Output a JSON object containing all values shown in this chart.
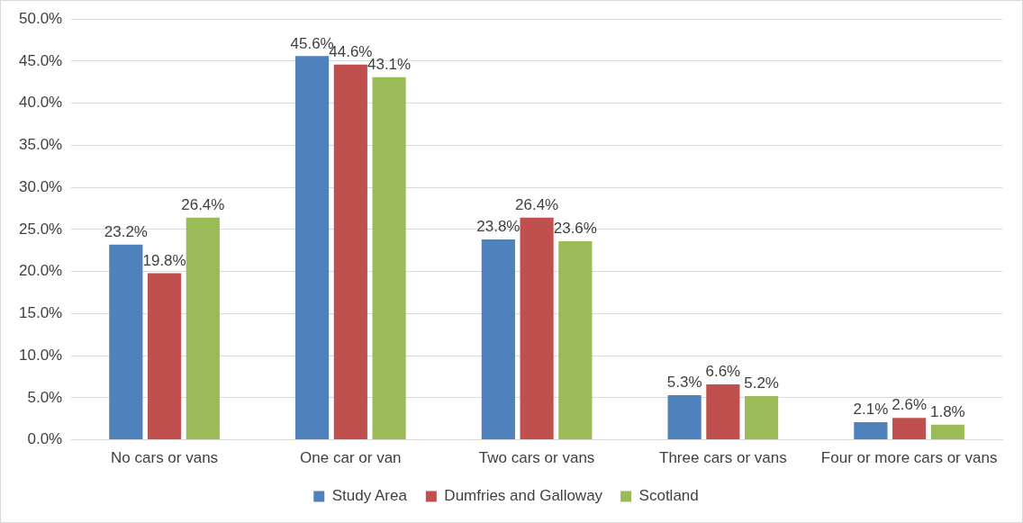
{
  "chart_data": {
    "type": "bar",
    "categories": [
      "No cars or vans",
      "One car or van",
      "Two cars or vans",
      "Three cars or vans",
      "Four or more cars or vans"
    ],
    "series": [
      {
        "name": "Study Area",
        "color": "#4f81bd",
        "values": [
          23.2,
          45.6,
          23.8,
          5.3,
          2.1
        ],
        "value_labels": [
          "23.2%",
          "45.6%",
          "23.8%",
          "5.3%",
          "2.1%"
        ]
      },
      {
        "name": "Dumfries and Galloway",
        "color": "#c0504d",
        "values": [
          19.8,
          44.6,
          26.4,
          6.6,
          2.6
        ],
        "value_labels": [
          "19.8%",
          "44.6%",
          "26.4%",
          "6.6%",
          "2.6%"
        ]
      },
      {
        "name": "Scotland",
        "color": "#9bbb59",
        "values": [
          26.4,
          43.1,
          23.6,
          5.2,
          1.8
        ],
        "value_labels": [
          "26.4%",
          "43.1%",
          "23.6%",
          "5.2%",
          "1.8%"
        ]
      }
    ],
    "ylim": [
      0,
      50
    ],
    "yticks": [
      {
        "value": 0,
        "label": "0.0%"
      },
      {
        "value": 5,
        "label": "5.0%"
      },
      {
        "value": 10,
        "label": "10.0%"
      },
      {
        "value": 15,
        "label": "15.0%"
      },
      {
        "value": 20,
        "label": "20.0%"
      },
      {
        "value": 25,
        "label": "25.0%"
      },
      {
        "value": 30,
        "label": "30.0%"
      },
      {
        "value": 35,
        "label": "35.0%"
      },
      {
        "value": 40,
        "label": "40.0%"
      },
      {
        "value": 45,
        "label": "45.0%"
      },
      {
        "value": 50,
        "label": "50.0%"
      }
    ],
    "grid": "y",
    "legend": "bottom"
  }
}
